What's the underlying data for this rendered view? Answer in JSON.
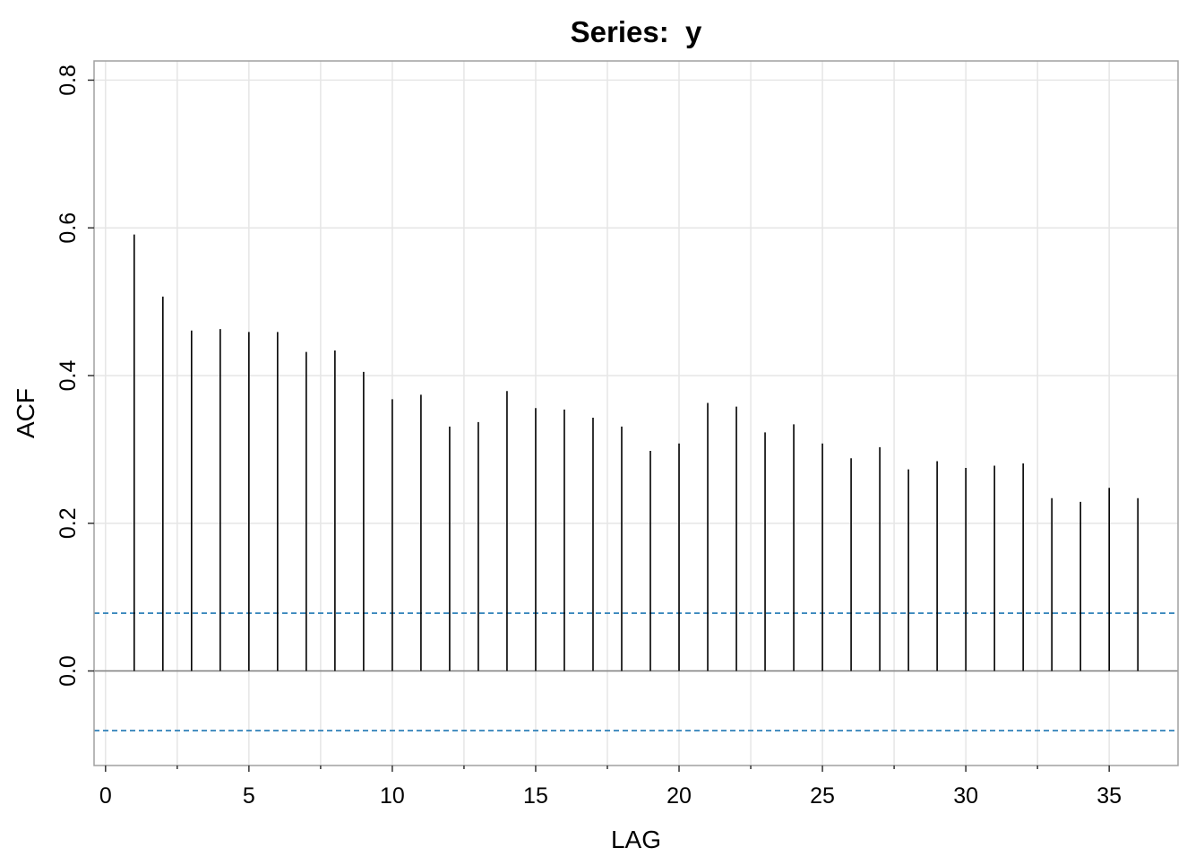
{
  "chart_data": {
    "type": "bar",
    "title": "Series:  y",
    "xlabel": "LAG",
    "ylabel": "ACF",
    "xlim": [
      -0.4,
      37.4
    ],
    "ylim": [
      -0.128,
      0.826
    ],
    "x_ticks": [
      0,
      5,
      10,
      15,
      20,
      25,
      30,
      35
    ],
    "x_tick_labels": [
      "0",
      "5",
      "10",
      "15",
      "20",
      "25",
      "30",
      "35"
    ],
    "x_minor_ticks": [
      2.5,
      7.5,
      12.5,
      17.5,
      22.5,
      27.5,
      32.5
    ],
    "y_ticks": [
      0.0,
      0.2,
      0.4,
      0.6,
      0.8
    ],
    "y_tick_labels": [
      "0.0",
      "0.2",
      "0.4",
      "0.6",
      "0.8"
    ],
    "grid": true,
    "confidence_bounds": [
      0.0782,
      -0.0807
    ],
    "lags": [
      1,
      2,
      3,
      4,
      5,
      6,
      7,
      8,
      9,
      10,
      11,
      12,
      13,
      14,
      15,
      16,
      17,
      18,
      19,
      20,
      21,
      22,
      23,
      24,
      25,
      26,
      27,
      28,
      29,
      30,
      31,
      32,
      33,
      34,
      35,
      36
    ],
    "values": [
      0.591,
      0.507,
      0.461,
      0.463,
      0.459,
      0.459,
      0.432,
      0.434,
      0.405,
      0.368,
      0.374,
      0.331,
      0.337,
      0.379,
      0.356,
      0.354,
      0.343,
      0.331,
      0.298,
      0.308,
      0.363,
      0.358,
      0.323,
      0.334,
      0.308,
      0.288,
      0.303,
      0.273,
      0.284,
      0.275,
      0.278,
      0.281,
      0.234,
      0.229,
      0.248,
      0.234
    ],
    "colors": {
      "spike": "#000000",
      "zero_line": "#808080",
      "confidence": "#1f77b4",
      "grid": "#e6e6e6",
      "frame": "#a0a0a0"
    }
  }
}
